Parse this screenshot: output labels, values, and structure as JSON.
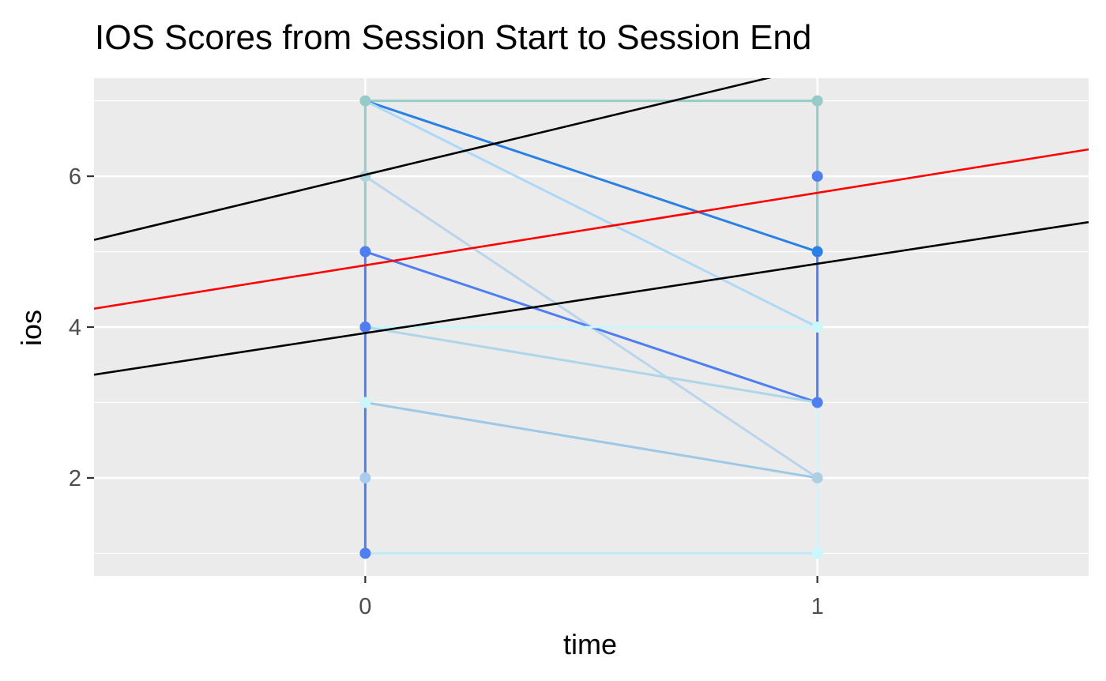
{
  "chart_data": {
    "type": "line",
    "title": "IOS Scores from Session Start to Session End",
    "xlabel": "time",
    "ylabel": "ios",
    "xlim": [
      -0.6,
      1.6
    ],
    "ylim": [
      0.7,
      7.3
    ],
    "x_ticks": [
      0,
      1
    ],
    "x_tick_labels": [
      "0",
      "1"
    ],
    "y_ticks": [
      2,
      4,
      6
    ],
    "y_tick_labels": [
      "2",
      "4",
      "6"
    ],
    "y_minor_gridlines": [
      1,
      3,
      5,
      7
    ],
    "grid": true,
    "legend": "none",
    "panel_background": "#ebebeb",
    "gridline_color": "#ffffff",
    "series": [
      {
        "x": [
          0,
          1
        ],
        "y": [
          7,
          7
        ],
        "color": "#96cbc8"
      },
      {
        "x": [
          0,
          1
        ],
        "y": [
          7,
          5
        ],
        "color": "#2a80e4"
      },
      {
        "x": [
          0,
          1
        ],
        "y": [
          7,
          4
        ],
        "color": "#aed8f7"
      },
      {
        "x": [
          0,
          1
        ],
        "y": [
          6,
          2
        ],
        "color": "#bad4ee"
      },
      {
        "x": [
          0,
          1
        ],
        "y": [
          5,
          3
        ],
        "color": "#4e7ef0"
      },
      {
        "x": [
          0,
          1
        ],
        "y": [
          4,
          4
        ],
        "color": "#c9f7fb"
      },
      {
        "x": [
          0,
          1
        ],
        "y": [
          4,
          3
        ],
        "color": "#add6ea"
      },
      {
        "x": [
          0,
          1
        ],
        "y": [
          3,
          2
        ],
        "color": "#9ec8e6"
      },
      {
        "x": [
          0,
          1
        ],
        "y": [
          1,
          1
        ],
        "color": "#bde9fb"
      },
      {
        "x": [
          0,
          0
        ],
        "y": [
          1,
          5
        ],
        "color": "#4e7ef0"
      },
      {
        "x": [
          0,
          0
        ],
        "y": [
          5,
          7
        ],
        "color": "#96cbc8"
      },
      {
        "x": [
          1,
          1
        ],
        "y": [
          3,
          6
        ],
        "color": "#4e7ef0"
      },
      {
        "x": [
          1,
          1
        ],
        "y": [
          5,
          7
        ],
        "color": "#96cbc8"
      },
      {
        "x": [
          1,
          1
        ],
        "y": [
          1,
          3
        ],
        "color": "#c9f7fb"
      }
    ],
    "points": [
      {
        "x": 0,
        "y": 7,
        "color": "#96cbc8"
      },
      {
        "x": 0,
        "y": 6,
        "color": "#aed4df"
      },
      {
        "x": 0,
        "y": 5,
        "color": "#4e7ef0"
      },
      {
        "x": 0,
        "y": 4,
        "color": "#4e7ef0"
      },
      {
        "x": 0,
        "y": 3,
        "color": "#c9f7fb"
      },
      {
        "x": 0,
        "y": 2,
        "color": "#a9cdef"
      },
      {
        "x": 0,
        "y": 1,
        "color": "#4e7ef0"
      },
      {
        "x": 1,
        "y": 7,
        "color": "#96cbc8"
      },
      {
        "x": 1,
        "y": 6,
        "color": "#4e7ef0"
      },
      {
        "x": 1,
        "y": 5,
        "color": "#2a80e4"
      },
      {
        "x": 1,
        "y": 4,
        "color": "#c9f7fb"
      },
      {
        "x": 1,
        "y": 3,
        "color": "#4e7ef0"
      },
      {
        "x": 1,
        "y": 2,
        "color": "#aecfe2"
      },
      {
        "x": 1,
        "y": 1,
        "color": "#c9f7fb"
      }
    ],
    "reference_lines": [
      {
        "intercept": 4.82,
        "slope": 0.96,
        "color": "#ff0000"
      },
      {
        "intercept": 6.02,
        "slope": 1.44,
        "color": "#000000"
      },
      {
        "intercept": 3.92,
        "slope": 0.92,
        "color": "#000000"
      }
    ]
  }
}
